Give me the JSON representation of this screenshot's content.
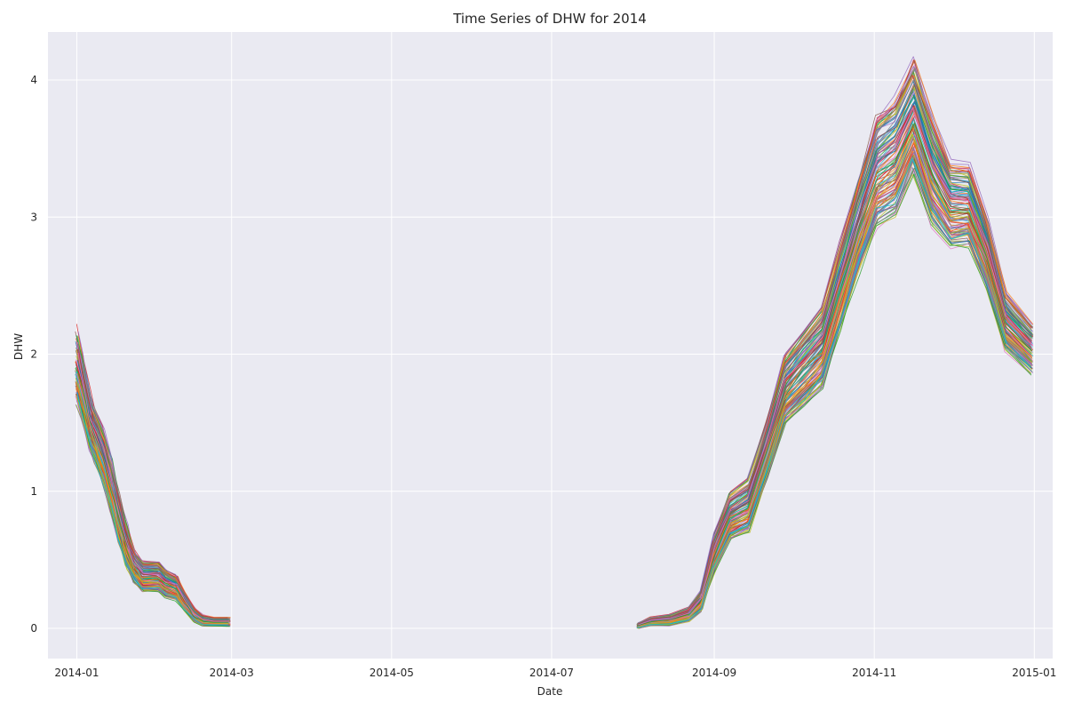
{
  "chart_data": {
    "type": "line",
    "title": "Time Series of DHW for 2014",
    "xlabel": "Date",
    "ylabel": "DHW",
    "x_ticks": [
      "2014-01",
      "2014-03",
      "2014-05",
      "2014-07",
      "2014-09",
      "2014-11",
      "2015-01"
    ],
    "y_ticks": [
      "0",
      "1",
      "2",
      "3",
      "4"
    ],
    "xlim": [
      "2013-12-21",
      "2015-01-08"
    ],
    "ylim": [
      -0.22,
      4.35
    ],
    "grid": true,
    "legend": "none",
    "background_color": "#eaeaf2",
    "series_count": 120,
    "palette": [
      "#1f77b4",
      "#ff7f0e",
      "#2ca02c",
      "#d62728",
      "#9467bd",
      "#8c564b",
      "#e377c2",
      "#7f7f7f",
      "#bcbd22",
      "#17becf"
    ],
    "ensemble_profile": {
      "segments": [
        {
          "dates": [
            "2014-01-01",
            "2014-01-03",
            "2014-01-06",
            "2014-01-08",
            "2014-01-11",
            "2014-01-14",
            "2014-01-17",
            "2014-01-20",
            "2014-01-23",
            "2014-01-26",
            "2014-02-01",
            "2014-02-04",
            "2014-02-08",
            "2014-02-11",
            "2014-02-15",
            "2014-02-18",
            "2014-02-22",
            "2014-02-28"
          ],
          "median": [
            1.9,
            1.75,
            1.5,
            1.4,
            1.25,
            1.05,
            0.8,
            0.6,
            0.45,
            0.38,
            0.38,
            0.33,
            0.3,
            0.2,
            0.1,
            0.06,
            0.05,
            0.05
          ],
          "spread": [
            0.26,
            0.24,
            0.2,
            0.2,
            0.2,
            0.2,
            0.18,
            0.16,
            0.12,
            0.11,
            0.11,
            0.1,
            0.09,
            0.07,
            0.05,
            0.04,
            0.03,
            0.03
          ]
        },
        {
          "dates": [
            "2014-08-03",
            "2014-08-08",
            "2014-08-15",
            "2014-08-22",
            "2014-08-27",
            "2014-09-01",
            "2014-09-07",
            "2014-09-14",
            "2014-09-21",
            "2014-09-28",
            "2014-10-05",
            "2014-10-12",
            "2014-10-19",
            "2014-10-26",
            "2014-11-02",
            "2014-11-09",
            "2014-11-16",
            "2014-11-23",
            "2014-11-30",
            "2014-12-07",
            "2014-12-14",
            "2014-12-21",
            "2014-12-31"
          ],
          "median": [
            0.02,
            0.05,
            0.06,
            0.1,
            0.2,
            0.55,
            0.82,
            0.9,
            1.3,
            1.75,
            1.9,
            2.05,
            2.5,
            2.95,
            3.35,
            3.45,
            3.75,
            3.35,
            3.1,
            3.1,
            2.75,
            2.25,
            2.05
          ],
          "spread": [
            0.02,
            0.03,
            0.04,
            0.05,
            0.08,
            0.15,
            0.17,
            0.2,
            0.22,
            0.25,
            0.28,
            0.3,
            0.32,
            0.35,
            0.4,
            0.42,
            0.4,
            0.38,
            0.3,
            0.28,
            0.25,
            0.2,
            0.17
          ]
        }
      ]
    }
  }
}
